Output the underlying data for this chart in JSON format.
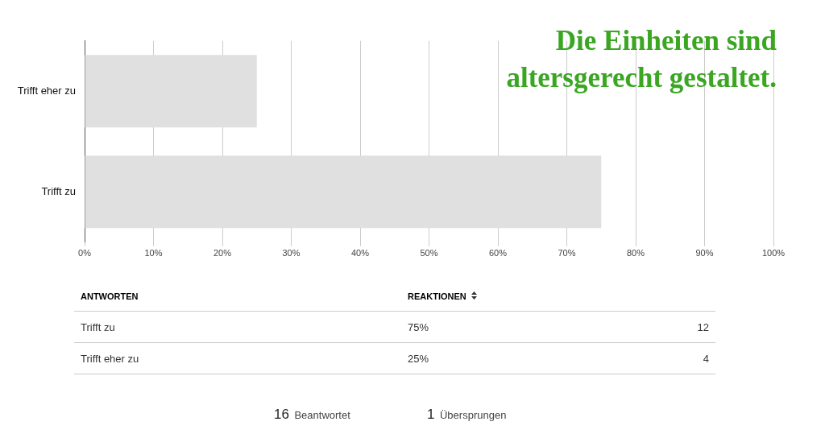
{
  "chart_data": {
    "type": "bar",
    "orientation": "horizontal",
    "title": "Die Einheiten sind altersgerecht gestaltet.",
    "categories": [
      "Trifft eher zu",
      "Trifft zu"
    ],
    "values": [
      25,
      75
    ],
    "color": "#e0e0e0",
    "xlim": [
      0,
      100
    ],
    "xticks": [
      {
        "value": 0,
        "label": "0%"
      },
      {
        "value": 10,
        "label": "10%"
      },
      {
        "value": 20,
        "label": "20%"
      },
      {
        "value": 30,
        "label": "30%"
      },
      {
        "value": 40,
        "label": "40%"
      },
      {
        "value": 50,
        "label": "50%"
      },
      {
        "value": 60,
        "label": "60%"
      },
      {
        "value": 70,
        "label": "70%"
      },
      {
        "value": 80,
        "label": "80%"
      },
      {
        "value": 90,
        "label": "90%"
      },
      {
        "value": 100,
        "label": "100%"
      }
    ],
    "grid": "x",
    "legend": false,
    "annotations": [
      "ANTWORTEN",
      "REAKTIONEN",
      "4",
      "12",
      "16 Beantwortet",
      "1 Übersprungen",
      "25%",
      "75%"
    ]
  }
}
